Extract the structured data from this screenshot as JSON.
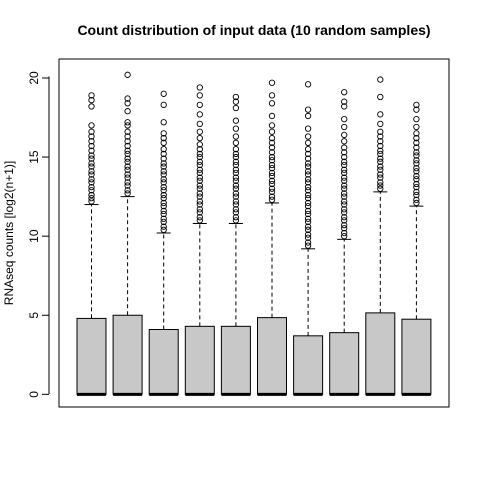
{
  "chart_data": {
    "type": "boxplot",
    "title": "Count distribution of input data (10 random samples)",
    "xlabel": "",
    "ylabel": "RNAseq counts [log2(n+1)]",
    "ylim": [
      -0.8,
      21.2
    ],
    "yticks": [
      0,
      5,
      10,
      15,
      20
    ],
    "ytick_labels": [
      "0",
      "5",
      "10",
      "15",
      "20"
    ],
    "grid": false,
    "legend": "none",
    "box_fill": "#c8c8c8",
    "series": [
      {
        "q1": 0,
        "median": 0,
        "q3": 4.8,
        "whisker_low": 0,
        "whisker_high": 12.0,
        "outliers": [
          12.2,
          12.4,
          12.6,
          12.9,
          13.1,
          13.4,
          13.6,
          13.9,
          14.1,
          14.4,
          14.6,
          14.9,
          15.1,
          15.4,
          15.7,
          16.0,
          16.3,
          16.6,
          17.0,
          18.2,
          18.6,
          18.9
        ]
      },
      {
        "q1": 0,
        "median": 0,
        "q3": 5.0,
        "whisker_low": 0,
        "whisker_high": 12.5,
        "outliers": [
          12.7,
          12.9,
          13.2,
          13.4,
          13.7,
          13.9,
          14.2,
          14.4,
          14.7,
          14.9,
          15.2,
          15.4,
          15.7,
          16.0,
          16.3,
          16.6,
          17.0,
          17.2,
          17.9,
          18.4,
          18.7,
          20.2
        ]
      },
      {
        "q1": 0,
        "median": 0,
        "q3": 4.1,
        "whisker_low": 0,
        "whisker_high": 10.2,
        "outliers": [
          10.4,
          10.6,
          10.9,
          11.1,
          11.4,
          11.6,
          11.9,
          12.1,
          12.4,
          12.6,
          12.9,
          13.1,
          13.4,
          13.6,
          13.9,
          14.1,
          14.4,
          14.6,
          14.9,
          15.2,
          15.5,
          15.9,
          16.2,
          16.5,
          17.2,
          18.3,
          19.0
        ]
      },
      {
        "q1": 0,
        "median": 0,
        "q3": 4.3,
        "whisker_low": 0,
        "whisker_high": 10.8,
        "outliers": [
          11.0,
          11.2,
          11.5,
          11.7,
          12.0,
          12.2,
          12.5,
          12.7,
          13.0,
          13.2,
          13.5,
          13.7,
          14.0,
          14.2,
          14.5,
          14.7,
          15.0,
          15.2,
          15.5,
          15.8,
          16.2,
          16.6,
          17.1,
          17.7,
          18.3,
          18.9,
          19.4
        ]
      },
      {
        "q1": 0,
        "median": 0,
        "q3": 4.3,
        "whisker_low": 0,
        "whisker_high": 10.8,
        "outliers": [
          11.0,
          11.2,
          11.5,
          11.7,
          12.0,
          12.2,
          12.5,
          12.7,
          13.0,
          13.2,
          13.5,
          13.7,
          14.0,
          14.2,
          14.5,
          14.7,
          15.0,
          15.2,
          15.5,
          15.9,
          16.3,
          16.8,
          17.3,
          18.1,
          18.5,
          18.8
        ]
      },
      {
        "q1": 0,
        "median": 0,
        "q3": 4.85,
        "whisker_low": 0,
        "whisker_high": 12.1,
        "outliers": [
          12.3,
          12.5,
          12.8,
          13.0,
          13.3,
          13.5,
          13.8,
          14.0,
          14.3,
          14.5,
          14.8,
          15.0,
          15.3,
          15.6,
          15.9,
          16.2,
          16.6,
          17.0,
          17.6,
          18.4,
          18.9,
          19.7
        ]
      },
      {
        "q1": 0,
        "median": 0,
        "q3": 3.7,
        "whisker_low": 0,
        "whisker_high": 9.2,
        "outliers": [
          9.4,
          9.6,
          9.9,
          10.1,
          10.4,
          10.6,
          10.9,
          11.1,
          11.4,
          11.6,
          11.9,
          12.1,
          12.4,
          12.6,
          12.9,
          13.1,
          13.4,
          13.6,
          13.9,
          14.1,
          14.4,
          14.6,
          14.9,
          15.2,
          15.5,
          15.9,
          16.3,
          16.8,
          17.6,
          18.0,
          19.6
        ]
      },
      {
        "q1": 0,
        "median": 0,
        "q3": 3.9,
        "whisker_low": 0,
        "whisker_high": 9.8,
        "outliers": [
          10.0,
          10.2,
          10.5,
          10.7,
          11.0,
          11.2,
          11.5,
          11.7,
          12.0,
          12.2,
          12.5,
          12.7,
          13.0,
          13.2,
          13.5,
          13.7,
          14.0,
          14.2,
          14.5,
          14.7,
          15.0,
          15.3,
          15.6,
          16.0,
          16.4,
          16.9,
          17.4,
          18.2,
          18.5,
          19.1
        ]
      },
      {
        "q1": 0,
        "median": 0,
        "q3": 5.15,
        "whisker_low": 0,
        "whisker_high": 12.8,
        "outliers": [
          13.0,
          13.2,
          13.4,
          13.7,
          13.9,
          14.2,
          14.4,
          14.7,
          14.9,
          15.2,
          15.4,
          15.7,
          16.0,
          16.3,
          16.6,
          17.1,
          17.7,
          18.8,
          19.9
        ]
      },
      {
        "q1": 0,
        "median": 0,
        "q3": 4.75,
        "whisker_low": 0,
        "whisker_high": 11.9,
        "outliers": [
          12.1,
          12.3,
          12.6,
          12.8,
          13.1,
          13.3,
          13.6,
          13.8,
          14.1,
          14.3,
          14.6,
          14.8,
          15.1,
          15.3,
          15.6,
          15.9,
          16.2,
          16.5,
          16.9,
          17.4,
          18.0,
          18.3
        ]
      }
    ]
  }
}
